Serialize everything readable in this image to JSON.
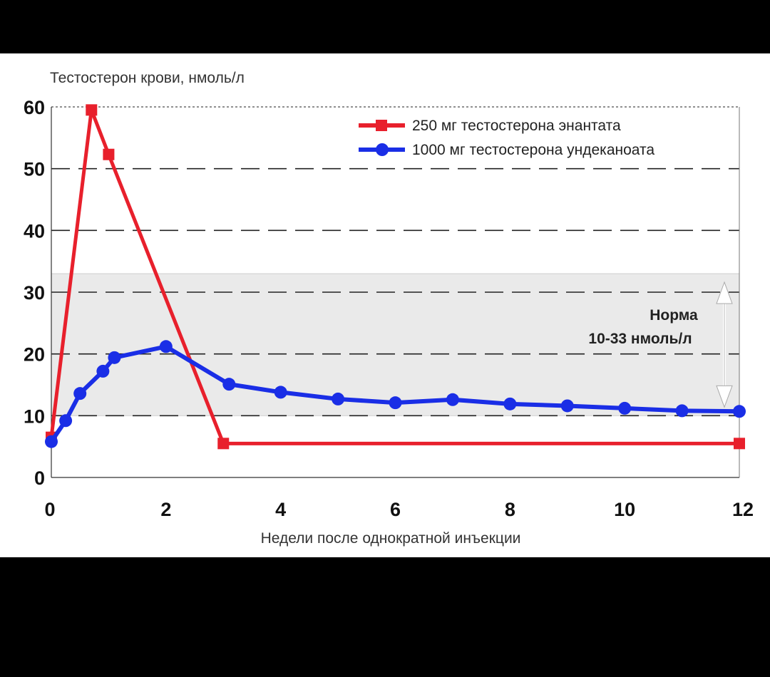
{
  "chart_data": {
    "type": "line",
    "ylabel": "Тестостерон крови, нмоль/л",
    "xlabel": "Недели после однократной инъекции",
    "xlim": [
      0,
      12
    ],
    "ylim": [
      0,
      60
    ],
    "x_ticks": [
      "0",
      "2",
      "4",
      "6",
      "8",
      "10",
      "12"
    ],
    "y_ticks": [
      "0",
      "10",
      "20",
      "30",
      "40",
      "50",
      "60"
    ],
    "grid": "horizontal dashed",
    "legend": "top-right",
    "reference_band": {
      "from": 10,
      "to": 33,
      "label_line1": "Норма",
      "label_line2": "10-33 нмоль/л",
      "color": "#eaeaea"
    },
    "series": [
      {
        "name": "250 мг тестостерона энантата",
        "color": "#e8202c",
        "marker": "square",
        "points": [
          [
            0,
            6.5
          ],
          [
            0.7,
            59.5
          ],
          [
            1.0,
            52.3
          ],
          [
            3.0,
            5.5
          ],
          [
            12.0,
            5.5
          ]
        ]
      },
      {
        "name": "1000 мг тестостерона ундеканоата",
        "color": "#1a2ee6",
        "marker": "circle",
        "points": [
          [
            0,
            5.8
          ],
          [
            0.25,
            9.2
          ],
          [
            0.5,
            13.6
          ],
          [
            0.9,
            17.2
          ],
          [
            1.1,
            19.4
          ],
          [
            2.0,
            21.2
          ],
          [
            3.1,
            15.1
          ],
          [
            4.0,
            13.8
          ],
          [
            5.0,
            12.7
          ],
          [
            6.0,
            12.1
          ],
          [
            7.0,
            12.6
          ],
          [
            8.0,
            11.9
          ],
          [
            9.0,
            11.6
          ],
          [
            10.0,
            11.2
          ],
          [
            11.0,
            10.8
          ],
          [
            12.0,
            10.7
          ]
        ]
      }
    ]
  }
}
